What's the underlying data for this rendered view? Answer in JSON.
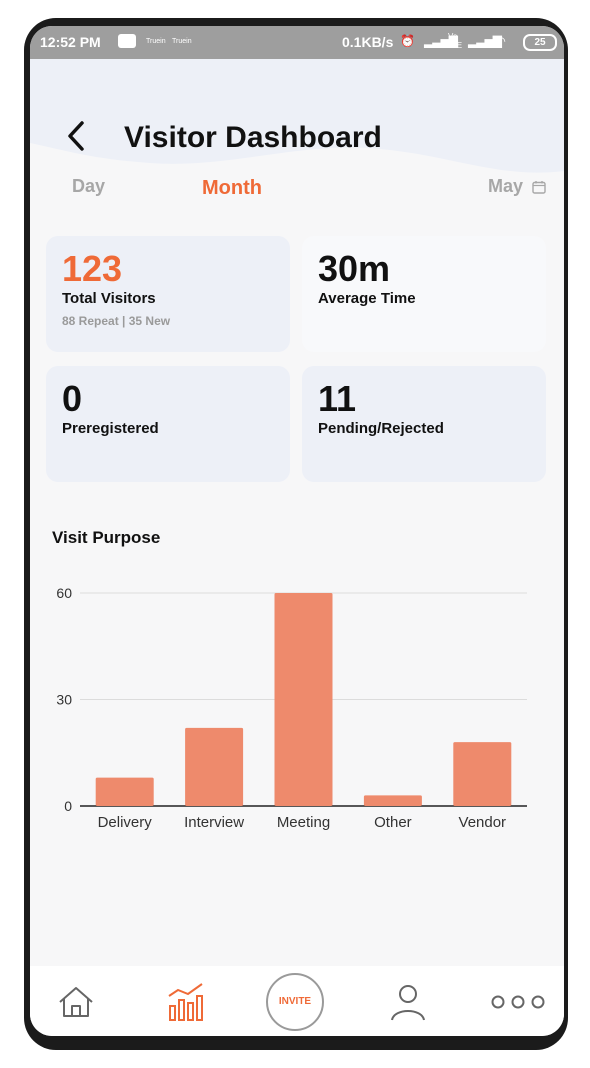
{
  "status_bar": {
    "time": "12:52 PM",
    "notif_1": "Truein",
    "notif_2": "Truein",
    "speed": "0.1KB/s",
    "network_label": "Vo LTE",
    "battery": "25"
  },
  "header": {
    "title": "Visitor Dashboard"
  },
  "tabs": {
    "day": "Day",
    "month": "Month",
    "selected": "Month",
    "period": "May"
  },
  "cards": [
    {
      "value": "123",
      "label": "Total Visitors",
      "sub": "88 Repeat | 35 New"
    },
    {
      "value": "30m",
      "label": "Average Time"
    },
    {
      "value": "0",
      "label": "Preregistered"
    },
    {
      "value": "11",
      "label": "Pending/Rejected"
    }
  ],
  "section": {
    "title": "Visit Purpose"
  },
  "chart_data": {
    "type": "bar",
    "categories": [
      "Delivery",
      "Interview",
      "Meeting",
      "Other",
      "Vendor"
    ],
    "values": [
      8,
      22,
      60,
      3,
      18
    ],
    "yticks": [
      0,
      30,
      60
    ],
    "ylim": [
      0,
      60
    ],
    "bar_color": "#ee8a6c",
    "grid": true
  },
  "nav": {
    "invite_label": "INVITE",
    "active": "dashboard"
  },
  "colors": {
    "accent": "#ef6a37",
    "card_bg": "#edf0f7"
  }
}
